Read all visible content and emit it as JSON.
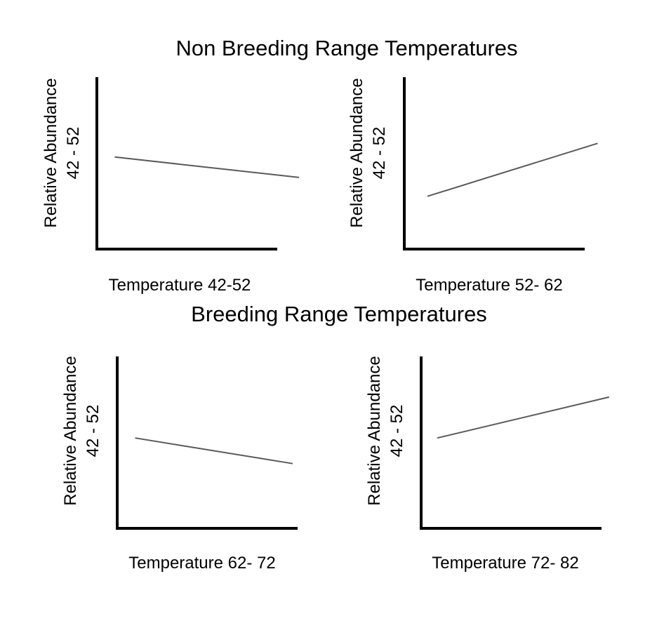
{
  "titles": {
    "non_breeding": "Non Breeding Range Temperatures",
    "breeding": "Breeding Range Temperatures"
  },
  "colors": {
    "axis": "#000000",
    "series": "#5a5a5a",
    "background": "#ffffff"
  },
  "chart_data": [
    {
      "type": "line",
      "group": "Non Breeding Range Temperatures",
      "xlabel": "Temperature 42-52",
      "ylabel": [
        "Relative Abundance",
        "42 - 52"
      ],
      "xlim": [
        0,
        100
      ],
      "ylim": [
        0,
        100
      ],
      "grid": false,
      "series": [
        {
          "x": [
            10,
            113
          ],
          "y": [
            54,
            42
          ]
        }
      ]
    },
    {
      "type": "line",
      "group": "Non Breeding Range Temperatures",
      "xlabel": "Temperature 52- 62",
      "ylabel": [
        "Relative Abundance",
        "42 - 52"
      ],
      "xlim": [
        0,
        100
      ],
      "ylim": [
        0,
        100
      ],
      "grid": false,
      "series": [
        {
          "x": [
            13,
            108
          ],
          "y": [
            31,
            62
          ]
        }
      ]
    },
    {
      "type": "line",
      "group": "Breeding Range Temperatures",
      "xlabel": "Temperature 62- 72",
      "ylabel": [
        "Relative Abundance",
        "42 - 52"
      ],
      "xlim": [
        0,
        100
      ],
      "ylim": [
        0,
        100
      ],
      "grid": false,
      "series": [
        {
          "x": [
            10,
            98
          ],
          "y": [
            53,
            38
          ]
        }
      ]
    },
    {
      "type": "line",
      "group": "Breeding Range Temperatures",
      "xlabel": "Temperature 72- 82",
      "ylabel": [
        "Relative Abundance",
        "42 - 52"
      ],
      "xlim": [
        0,
        100
      ],
      "ylim": [
        0,
        100
      ],
      "grid": false,
      "series": [
        {
          "x": [
            9,
            105
          ],
          "y": [
            53,
            77
          ]
        }
      ]
    }
  ]
}
